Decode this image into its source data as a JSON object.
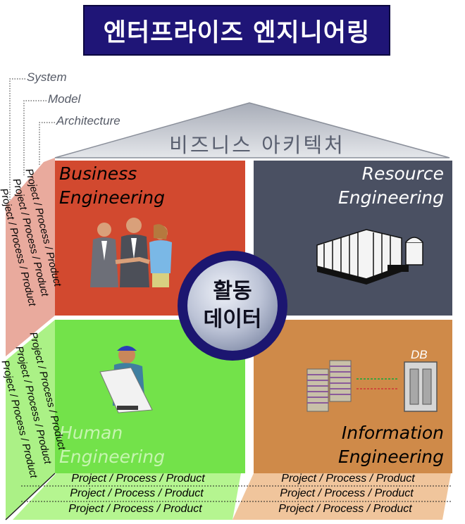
{
  "title": "엔터프라이즈 엔지니어링",
  "levels": [
    "System",
    "Model",
    "Architecture"
  ],
  "roof_label": "비즈니스 아키텍처",
  "quadrants": {
    "business": {
      "line1": "Business",
      "line2": "Engineering"
    },
    "resource": {
      "line1": "Resource",
      "line2": "Engineering"
    },
    "human": {
      "line1": "Human",
      "line2": "Engineering"
    },
    "information": {
      "line1": "Information",
      "line2": "Engineering"
    }
  },
  "center": {
    "line1": "활동",
    "line2": "데이터"
  },
  "db_label": "DB",
  "band_text": "Project / Process / Product",
  "colors": {
    "title_bg": "#1f1577",
    "business": "#d2492f",
    "resource": "#4a5062",
    "human": "#73e24a",
    "information": "#cf8a49",
    "circle_ring": "#1c1670"
  }
}
